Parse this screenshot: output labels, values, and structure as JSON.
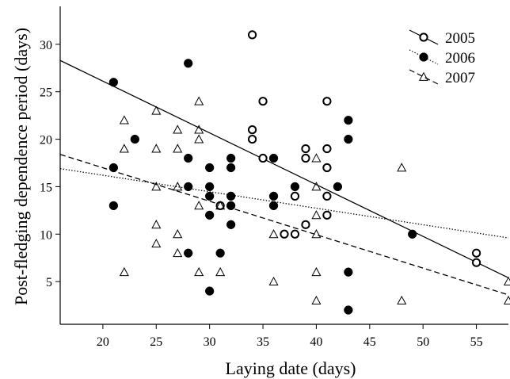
{
  "chart_data": {
    "type": "scatter",
    "xlabel": "Laying date (days)",
    "ylabel": "Post-fledging dependence period (days)",
    "xlim": [
      16,
      58
    ],
    "ylim": [
      0.5,
      34
    ],
    "xticks": [
      20,
      25,
      30,
      35,
      40,
      45,
      50,
      55
    ],
    "yticks": [
      5,
      10,
      15,
      20,
      25,
      30
    ],
    "grid": false,
    "legend_position": "top-right",
    "series": [
      {
        "name": "2005",
        "marker": "open-circle",
        "line_style": "solid",
        "fit": {
          "x": [
            16,
            58
          ],
          "y": [
            28.3,
            5.4
          ]
        },
        "points": [
          {
            "x": 31,
            "y": 13
          },
          {
            "x": 34,
            "y": 31
          },
          {
            "x": 34,
            "y": 21
          },
          {
            "x": 34,
            "y": 20
          },
          {
            "x": 35,
            "y": 24
          },
          {
            "x": 35,
            "y": 18
          },
          {
            "x": 37,
            "y": 10
          },
          {
            "x": 38,
            "y": 10
          },
          {
            "x": 38,
            "y": 14
          },
          {
            "x": 39,
            "y": 19
          },
          {
            "x": 39,
            "y": 18
          },
          {
            "x": 39,
            "y": 11
          },
          {
            "x": 41,
            "y": 24
          },
          {
            "x": 41,
            "y": 19
          },
          {
            "x": 41,
            "y": 17
          },
          {
            "x": 41,
            "y": 14
          },
          {
            "x": 41,
            "y": 12
          },
          {
            "x": 55,
            "y": 8
          },
          {
            "x": 55,
            "y": 7
          }
        ]
      },
      {
        "name": "2006",
        "marker": "filled-circle",
        "line_style": "dotted",
        "fit": {
          "x": [
            16,
            58
          ],
          "y": [
            16.9,
            9.6
          ]
        },
        "points": [
          {
            "x": 21,
            "y": 26
          },
          {
            "x": 21,
            "y": 17
          },
          {
            "x": 21,
            "y": 13
          },
          {
            "x": 23,
            "y": 20
          },
          {
            "x": 28,
            "y": 28
          },
          {
            "x": 28,
            "y": 18
          },
          {
            "x": 28,
            "y": 15
          },
          {
            "x": 28,
            "y": 8
          },
          {
            "x": 30,
            "y": 17
          },
          {
            "x": 30,
            "y": 15
          },
          {
            "x": 30,
            "y": 14
          },
          {
            "x": 30,
            "y": 12
          },
          {
            "x": 30,
            "y": 4
          },
          {
            "x": 31,
            "y": 8
          },
          {
            "x": 32,
            "y": 18
          },
          {
            "x": 32,
            "y": 17
          },
          {
            "x": 32,
            "y": 14
          },
          {
            "x": 32,
            "y": 13
          },
          {
            "x": 32,
            "y": 11
          },
          {
            "x": 36,
            "y": 18
          },
          {
            "x": 36,
            "y": 14
          },
          {
            "x": 36,
            "y": 13
          },
          {
            "x": 38,
            "y": 15
          },
          {
            "x": 42,
            "y": 15
          },
          {
            "x": 43,
            "y": 22
          },
          {
            "x": 43,
            "y": 20
          },
          {
            "x": 43,
            "y": 6
          },
          {
            "x": 43,
            "y": 2
          },
          {
            "x": 49,
            "y": 10
          }
        ]
      },
      {
        "name": "2007",
        "marker": "open-triangle",
        "line_style": "dashed",
        "fit": {
          "x": [
            16,
            58
          ],
          "y": [
            18.4,
            3.6
          ]
        },
        "points": [
          {
            "x": 22,
            "y": 22
          },
          {
            "x": 22,
            "y": 19
          },
          {
            "x": 22,
            "y": 6
          },
          {
            "x": 25,
            "y": 23
          },
          {
            "x": 25,
            "y": 19
          },
          {
            "x": 25,
            "y": 15
          },
          {
            "x": 25,
            "y": 11
          },
          {
            "x": 25,
            "y": 9
          },
          {
            "x": 27,
            "y": 21
          },
          {
            "x": 27,
            "y": 19
          },
          {
            "x": 27,
            "y": 15
          },
          {
            "x": 27,
            "y": 10
          },
          {
            "x": 27,
            "y": 8
          },
          {
            "x": 29,
            "y": 24
          },
          {
            "x": 29,
            "y": 21
          },
          {
            "x": 29,
            "y": 20
          },
          {
            "x": 29,
            "y": 13
          },
          {
            "x": 29,
            "y": 6
          },
          {
            "x": 31,
            "y": 13
          },
          {
            "x": 31,
            "y": 6
          },
          {
            "x": 36,
            "y": 10
          },
          {
            "x": 36,
            "y": 5
          },
          {
            "x": 40,
            "y": 18
          },
          {
            "x": 40,
            "y": 15
          },
          {
            "x": 40,
            "y": 12
          },
          {
            "x": 40,
            "y": 10
          },
          {
            "x": 40,
            "y": 6
          },
          {
            "x": 40,
            "y": 3
          },
          {
            "x": 48,
            "y": 17
          },
          {
            "x": 48,
            "y": 3
          },
          {
            "x": 58,
            "y": 5
          },
          {
            "x": 58,
            "y": 3
          }
        ]
      }
    ]
  }
}
